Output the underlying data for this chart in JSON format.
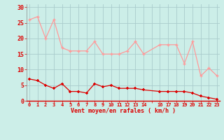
{
  "hours": [
    0,
    1,
    2,
    3,
    4,
    5,
    6,
    7,
    8,
    9,
    10,
    11,
    12,
    13,
    14,
    16,
    17,
    18,
    19,
    20,
    21,
    22,
    23
  ],
  "avg_wind": [
    7,
    6.5,
    5,
    4,
    5.5,
    3,
    3,
    2.5,
    5.5,
    4.5,
    5,
    4,
    4,
    4,
    3.5,
    3,
    3,
    3,
    3,
    2.5,
    1.5,
    1,
    0.5
  ],
  "gusts": [
    26,
    27,
    20,
    26,
    17,
    16,
    16,
    16,
    19,
    15,
    15,
    15,
    16,
    19,
    15,
    18,
    18,
    18,
    12,
    19,
    8,
    10.5,
    8
  ],
  "avg_color": "#dd0000",
  "gust_color": "#ff9999",
  "bg_color": "#cceee8",
  "grid_color": "#aacccc",
  "xlabel": "Vent moyen/en rafales ( km/h )",
  "ylim": [
    0,
    31
  ],
  "yticks": [
    0,
    5,
    10,
    15,
    20,
    25,
    30
  ],
  "tick_labels": [
    "0",
    "1",
    "2",
    "3",
    "4",
    "5",
    "6",
    "7",
    "8",
    "9",
    "10",
    "11",
    "12",
    "13",
    "14",
    "",
    "16",
    "17",
    "18",
    "19",
    "20",
    "21",
    "22",
    "23"
  ]
}
